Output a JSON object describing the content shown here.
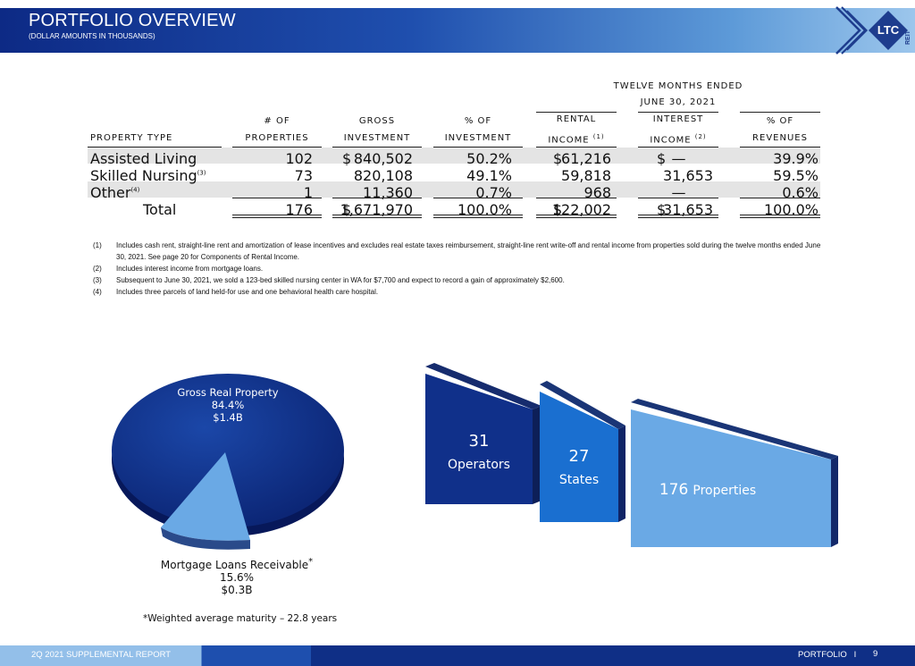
{
  "header": {
    "title": "PORTFOLIO OVERVIEW",
    "subtitle": "(DOLLAR AMOUNTS IN THOUSANDS)",
    "logo_text": "LTC",
    "logo_subtext": "REIT"
  },
  "table": {
    "group_header_line1": "TWELVE MONTHS ENDED",
    "group_header_line2": "JUNE 30, 2021",
    "columns": {
      "property_type": "PROPERTY TYPE",
      "num_properties_1": "# OF",
      "num_properties_2": "PROPERTIES",
      "gross_1": "GROSS",
      "gross_2": "INVESTMENT",
      "pct_inv_1": "% OF",
      "pct_inv_2": "INVESTMENT",
      "rental_1": "RENTAL",
      "rental_2": "INCOME",
      "rental_sup": "(1)",
      "interest_1": "INTEREST",
      "interest_2": "INCOME",
      "interest_sup": "(2)",
      "pct_rev_1": "% OF",
      "pct_rev_2": "REVENUES"
    },
    "rows": [
      {
        "type": "Assisted Living",
        "sup": "",
        "num": "102",
        "gross_cur": "$",
        "gross": "840,502",
        "pct_inv": "50.2%",
        "rental_cur": "$",
        "rental": "61,216",
        "interest_cur": "$",
        "interest": "—",
        "pct_rev": "39.9%"
      },
      {
        "type": "Skilled Nursing",
        "sup": "(3)",
        "num": "73",
        "gross_cur": "",
        "gross": "820,108",
        "pct_inv": "49.1%",
        "rental_cur": "",
        "rental": "59,818",
        "interest_cur": "",
        "interest": "31,653",
        "pct_rev": "59.5%"
      },
      {
        "type": "Other",
        "sup": "(4)",
        "num": "1",
        "gross_cur": "",
        "gross": "11,360",
        "pct_inv": "0.7%",
        "rental_cur": "",
        "rental": "968",
        "interest_cur": "",
        "interest": "—",
        "pct_rev": "0.6%"
      },
      {
        "type": "Total",
        "sup": "",
        "num": "176",
        "gross_cur": "$",
        "gross": "1,671,970",
        "pct_inv": "100.0%",
        "rental_cur": "$",
        "rental": "122,002",
        "interest_cur": "$",
        "interest": "31,653",
        "pct_rev": "100.0%"
      }
    ]
  },
  "notes": [
    {
      "num": "(1)",
      "text": "Includes cash rent, straight-line rent and amortization of lease incentives and excludes real estate taxes reimbursement, straight-line rent write-off and rental income from properties sold during the twelve months ended June 30, 2021. See page 20 for Components of Rental Income."
    },
    {
      "num": "(2)",
      "text": "Includes interest income from mortgage loans."
    },
    {
      "num": "(3)",
      "text": "Subsequent to June 30, 2021, we sold a 123-bed skilled nursing center in WA for $7,700 and expect to record a gain of approximately $2,600."
    },
    {
      "num": "(4)",
      "text": "Includes three parcels of land held-for use and one behavioral health care hospital."
    }
  ],
  "pie": {
    "gross_name": "Gross Real Property",
    "gross_pct": "84.4%",
    "gross_amt": "$1.4B",
    "mort_name": "Mortgage Loans Receivable",
    "mort_star": "*",
    "mort_pct": "15.6%",
    "mort_amt": "$0.3B",
    "footnote": "*Weighted average maturity – 22.8 years",
    "colors": {
      "gross": "#10308a",
      "mortgage": "#6aa9e5"
    }
  },
  "stats": {
    "operators_num": "31",
    "operators_label": "Operators",
    "states_num": "27",
    "states_label": "States",
    "properties_num": "176",
    "properties_label": "Properties"
  },
  "footer": {
    "left": "2Q 2021 SUPPLEMENTAL REPORT",
    "right": "PORTFOLIO",
    "sep": "I",
    "page": "9"
  }
}
